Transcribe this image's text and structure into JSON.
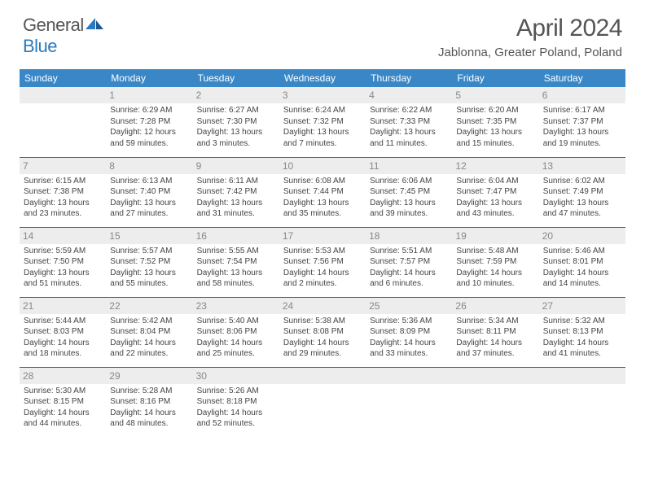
{
  "logo": {
    "word1": "General",
    "word2": "Blue"
  },
  "title": "April 2024",
  "location": "Jablonna, Greater Poland, Poland",
  "colors": {
    "header_bg": "#3a87c8",
    "header_fg": "#ffffff",
    "daynum_bg": "#ededed",
    "daynum_fg": "#888888",
    "text": "#444444",
    "rule": "#3a6a9a",
    "logo_gray": "#555555",
    "logo_blue": "#2a7ac0"
  },
  "typography": {
    "title_fontsize": 30,
    "location_fontsize": 15,
    "dayheader_fontsize": 12,
    "cell_fontsize": 10,
    "daynum_fontsize": 12
  },
  "day_headers": [
    "Sunday",
    "Monday",
    "Tuesday",
    "Wednesday",
    "Thursday",
    "Friday",
    "Saturday"
  ],
  "weeks": [
    [
      {
        "n": "",
        "empty": true
      },
      {
        "n": "1",
        "sr": "Sunrise: 6:29 AM",
        "ss": "Sunset: 7:28 PM",
        "d1": "Daylight: 12 hours",
        "d2": "and 59 minutes."
      },
      {
        "n": "2",
        "sr": "Sunrise: 6:27 AM",
        "ss": "Sunset: 7:30 PM",
        "d1": "Daylight: 13 hours",
        "d2": "and 3 minutes."
      },
      {
        "n": "3",
        "sr": "Sunrise: 6:24 AM",
        "ss": "Sunset: 7:32 PM",
        "d1": "Daylight: 13 hours",
        "d2": "and 7 minutes."
      },
      {
        "n": "4",
        "sr": "Sunrise: 6:22 AM",
        "ss": "Sunset: 7:33 PM",
        "d1": "Daylight: 13 hours",
        "d2": "and 11 minutes."
      },
      {
        "n": "5",
        "sr": "Sunrise: 6:20 AM",
        "ss": "Sunset: 7:35 PM",
        "d1": "Daylight: 13 hours",
        "d2": "and 15 minutes."
      },
      {
        "n": "6",
        "sr": "Sunrise: 6:17 AM",
        "ss": "Sunset: 7:37 PM",
        "d1": "Daylight: 13 hours",
        "d2": "and 19 minutes."
      }
    ],
    [
      {
        "n": "7",
        "sr": "Sunrise: 6:15 AM",
        "ss": "Sunset: 7:38 PM",
        "d1": "Daylight: 13 hours",
        "d2": "and 23 minutes."
      },
      {
        "n": "8",
        "sr": "Sunrise: 6:13 AM",
        "ss": "Sunset: 7:40 PM",
        "d1": "Daylight: 13 hours",
        "d2": "and 27 minutes."
      },
      {
        "n": "9",
        "sr": "Sunrise: 6:11 AM",
        "ss": "Sunset: 7:42 PM",
        "d1": "Daylight: 13 hours",
        "d2": "and 31 minutes."
      },
      {
        "n": "10",
        "sr": "Sunrise: 6:08 AM",
        "ss": "Sunset: 7:44 PM",
        "d1": "Daylight: 13 hours",
        "d2": "and 35 minutes."
      },
      {
        "n": "11",
        "sr": "Sunrise: 6:06 AM",
        "ss": "Sunset: 7:45 PM",
        "d1": "Daylight: 13 hours",
        "d2": "and 39 minutes."
      },
      {
        "n": "12",
        "sr": "Sunrise: 6:04 AM",
        "ss": "Sunset: 7:47 PM",
        "d1": "Daylight: 13 hours",
        "d2": "and 43 minutes."
      },
      {
        "n": "13",
        "sr": "Sunrise: 6:02 AM",
        "ss": "Sunset: 7:49 PM",
        "d1": "Daylight: 13 hours",
        "d2": "and 47 minutes."
      }
    ],
    [
      {
        "n": "14",
        "sr": "Sunrise: 5:59 AM",
        "ss": "Sunset: 7:50 PM",
        "d1": "Daylight: 13 hours",
        "d2": "and 51 minutes."
      },
      {
        "n": "15",
        "sr": "Sunrise: 5:57 AM",
        "ss": "Sunset: 7:52 PM",
        "d1": "Daylight: 13 hours",
        "d2": "and 55 minutes."
      },
      {
        "n": "16",
        "sr": "Sunrise: 5:55 AM",
        "ss": "Sunset: 7:54 PM",
        "d1": "Daylight: 13 hours",
        "d2": "and 58 minutes."
      },
      {
        "n": "17",
        "sr": "Sunrise: 5:53 AM",
        "ss": "Sunset: 7:56 PM",
        "d1": "Daylight: 14 hours",
        "d2": "and 2 minutes."
      },
      {
        "n": "18",
        "sr": "Sunrise: 5:51 AM",
        "ss": "Sunset: 7:57 PM",
        "d1": "Daylight: 14 hours",
        "d2": "and 6 minutes."
      },
      {
        "n": "19",
        "sr": "Sunrise: 5:48 AM",
        "ss": "Sunset: 7:59 PM",
        "d1": "Daylight: 14 hours",
        "d2": "and 10 minutes."
      },
      {
        "n": "20",
        "sr": "Sunrise: 5:46 AM",
        "ss": "Sunset: 8:01 PM",
        "d1": "Daylight: 14 hours",
        "d2": "and 14 minutes."
      }
    ],
    [
      {
        "n": "21",
        "sr": "Sunrise: 5:44 AM",
        "ss": "Sunset: 8:03 PM",
        "d1": "Daylight: 14 hours",
        "d2": "and 18 minutes."
      },
      {
        "n": "22",
        "sr": "Sunrise: 5:42 AM",
        "ss": "Sunset: 8:04 PM",
        "d1": "Daylight: 14 hours",
        "d2": "and 22 minutes."
      },
      {
        "n": "23",
        "sr": "Sunrise: 5:40 AM",
        "ss": "Sunset: 8:06 PM",
        "d1": "Daylight: 14 hours",
        "d2": "and 25 minutes."
      },
      {
        "n": "24",
        "sr": "Sunrise: 5:38 AM",
        "ss": "Sunset: 8:08 PM",
        "d1": "Daylight: 14 hours",
        "d2": "and 29 minutes."
      },
      {
        "n": "25",
        "sr": "Sunrise: 5:36 AM",
        "ss": "Sunset: 8:09 PM",
        "d1": "Daylight: 14 hours",
        "d2": "and 33 minutes."
      },
      {
        "n": "26",
        "sr": "Sunrise: 5:34 AM",
        "ss": "Sunset: 8:11 PM",
        "d1": "Daylight: 14 hours",
        "d2": "and 37 minutes."
      },
      {
        "n": "27",
        "sr": "Sunrise: 5:32 AM",
        "ss": "Sunset: 8:13 PM",
        "d1": "Daylight: 14 hours",
        "d2": "and 41 minutes."
      }
    ],
    [
      {
        "n": "28",
        "sr": "Sunrise: 5:30 AM",
        "ss": "Sunset: 8:15 PM",
        "d1": "Daylight: 14 hours",
        "d2": "and 44 minutes."
      },
      {
        "n": "29",
        "sr": "Sunrise: 5:28 AM",
        "ss": "Sunset: 8:16 PM",
        "d1": "Daylight: 14 hours",
        "d2": "and 48 minutes."
      },
      {
        "n": "30",
        "sr": "Sunrise: 5:26 AM",
        "ss": "Sunset: 8:18 PM",
        "d1": "Daylight: 14 hours",
        "d2": "and 52 minutes."
      },
      {
        "n": "",
        "empty": true
      },
      {
        "n": "",
        "empty": true
      },
      {
        "n": "",
        "empty": true
      },
      {
        "n": "",
        "empty": true
      }
    ]
  ]
}
